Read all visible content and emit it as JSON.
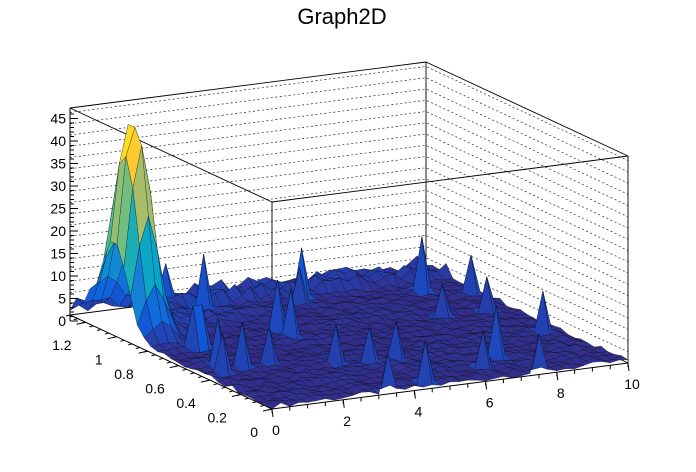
{
  "chart_data": {
    "type": "surface3d",
    "title": "Graph2D",
    "x_axis": {
      "range": [
        0,
        10
      ],
      "ticks": [
        "0",
        "2",
        "4",
        "6",
        "8",
        "10"
      ]
    },
    "y_axis": {
      "range": [
        0,
        1.3
      ],
      "ticks": [
        "0",
        "0.2",
        "0.4",
        "0.6",
        "0.8",
        "1",
        "1.2"
      ]
    },
    "z_axis": {
      "range": [
        0,
        46
      ],
      "ticks": [
        "0",
        "5",
        "10",
        "15",
        "20",
        "25",
        "30",
        "35",
        "40",
        "45"
      ]
    },
    "grid": true,
    "colormap": [
      "#352a87",
      "#0f5cdd",
      "#1481d6",
      "#06a4ca",
      "#2eb7a4",
      "#87bf77",
      "#d1bb59",
      "#fec832",
      "#f9fb0e"
    ],
    "description_of_shape": "Surface near zero across most of the domain, with a tall narrow peak reaching ~46 near x=0.5, y=1.0 and scattered small spikes.",
    "peak": {
      "x": 0.5,
      "y": 1.0,
      "z": 46
    }
  }
}
